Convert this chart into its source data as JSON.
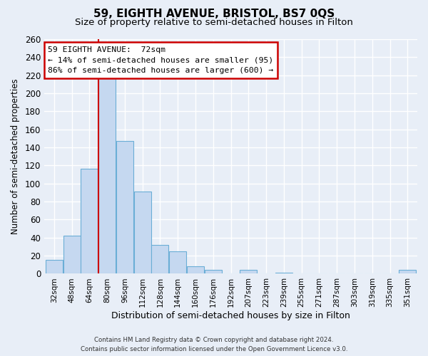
{
  "title": "59, EIGHTH AVENUE, BRISTOL, BS7 0QS",
  "subtitle": "Size of property relative to semi-detached houses in Filton",
  "xlabel": "Distribution of semi-detached houses by size in Filton",
  "ylabel": "Number of semi-detached properties",
  "bar_labels": [
    "32sqm",
    "48sqm",
    "64sqm",
    "80sqm",
    "96sqm",
    "112sqm",
    "128sqm",
    "144sqm",
    "160sqm",
    "176sqm",
    "192sqm",
    "207sqm",
    "223sqm",
    "239sqm",
    "255sqm",
    "271sqm",
    "287sqm",
    "303sqm",
    "319sqm",
    "335sqm",
    "351sqm"
  ],
  "bar_values": [
    15,
    42,
    116,
    217,
    147,
    91,
    32,
    25,
    8,
    4,
    0,
    4,
    0,
    1,
    0,
    0,
    0,
    0,
    0,
    0,
    4
  ],
  "bar_color": "#c5d8f0",
  "bar_edge_color": "#6aaed6",
  "property_line_color": "#cc0000",
  "ylim": [
    0,
    260
  ],
  "yticks": [
    0,
    20,
    40,
    60,
    80,
    100,
    120,
    140,
    160,
    180,
    200,
    220,
    240,
    260
  ],
  "annotation_title": "59 EIGHTH AVENUE:  72sqm",
  "annotation_line1": "← 14% of semi-detached houses are smaller (95)",
  "annotation_line2": "86% of semi-detached houses are larger (600) →",
  "annotation_box_color": "#ffffff",
  "annotation_box_edge": "#cc0000",
  "footer1": "Contains HM Land Registry data © Crown copyright and database right 2024.",
  "footer2": "Contains public sector information licensed under the Open Government Licence v3.0.",
  "bg_color": "#e8eef7",
  "plot_bg_color": "#e8eef7",
  "grid_color": "#ffffff",
  "title_fontsize": 11,
  "subtitle_fontsize": 9.5
}
